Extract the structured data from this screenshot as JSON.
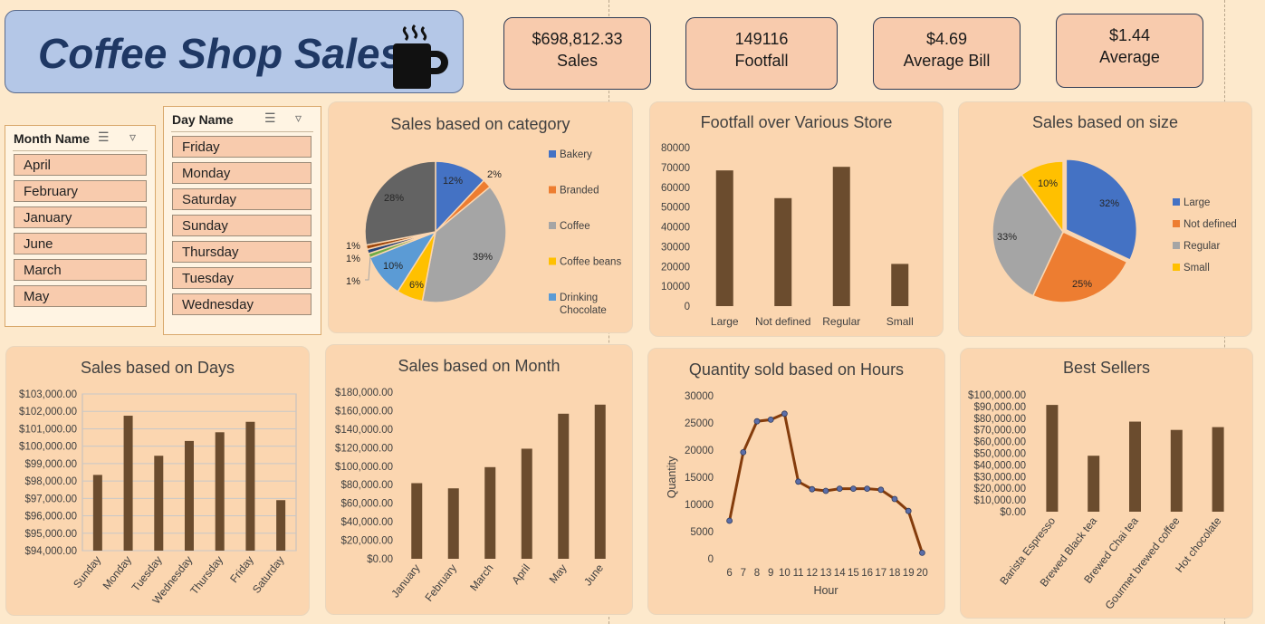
{
  "header": {
    "title": "Coffee Shop Sales",
    "icon": "coffee-mug-icon"
  },
  "kpis": [
    {
      "value": "$698,812.33",
      "label": "Sales"
    },
    {
      "value": "149116",
      "label": "Footfall"
    },
    {
      "value": "$4.69",
      "label": "Average Bill"
    },
    {
      "value": "$1.44",
      "label": "Average"
    }
  ],
  "slicers": {
    "month": {
      "title": "Month Name",
      "items": [
        "April",
        "February",
        "January",
        "June",
        "March",
        "May"
      ]
    },
    "day": {
      "title": "Day Name",
      "items": [
        "Friday",
        "Monday",
        "Saturday",
        "Sunday",
        "Thursday",
        "Tuesday",
        "Wednesday"
      ]
    }
  },
  "colors": {
    "bar": "#6b4c2e",
    "line": "#843c0c",
    "marker": "#5b6ea8",
    "blue": "#4472c4",
    "orange": "#ed7d31",
    "gray": "#a5a5a5",
    "gold": "#ffc000",
    "lightblue": "#5b9bd5",
    "green": "#70ad47",
    "navy": "#264478",
    "darkgray": "#636363"
  },
  "chart_data": [
    {
      "id": "category",
      "type": "pie",
      "title": "Sales based on category",
      "legend_position": "right",
      "legend": [
        "Bakery",
        "Branded",
        "Coffee",
        "Coffee beans",
        "Drinking Chocolate"
      ],
      "slices": [
        {
          "name": "Bakery",
          "value": 12,
          "label": "12%",
          "color": "#4472c4"
        },
        {
          "name": "Branded",
          "value": 2,
          "label": "2%",
          "color": "#ed7d31"
        },
        {
          "name": "Coffee",
          "value": 39,
          "label": "39%",
          "color": "#a5a5a5"
        },
        {
          "name": "Coffee beans",
          "value": 6,
          "label": "6%",
          "color": "#ffc000"
        },
        {
          "name": "Drinking Chocolate",
          "value": 10,
          "label": "10%",
          "color": "#5b9bd5"
        },
        {
          "name": "",
          "value": 1,
          "label": "1%",
          "color": "#70ad47"
        },
        {
          "name": "",
          "value": 1,
          "label": "1%",
          "color": "#264478"
        },
        {
          "name": "",
          "value": 1,
          "label": "1%",
          "color": "#9e480e"
        },
        {
          "name": "",
          "value": 28,
          "label": "28%",
          "color": "#636363"
        }
      ]
    },
    {
      "id": "footfall",
      "type": "bar",
      "title": "Footfall over Various Store",
      "categories": [
        "Large",
        "Not defined",
        "Regular",
        "Small"
      ],
      "values": [
        68500,
        54500,
        70300,
        21300
      ],
      "ylim": [
        0,
        80000
      ],
      "ticks": [
        0,
        10000,
        20000,
        30000,
        40000,
        50000,
        60000,
        70000,
        80000
      ],
      "tick_labels": [
        "0",
        "10000",
        "20000",
        "30000",
        "40000",
        "50000",
        "60000",
        "70000",
        "80000"
      ]
    },
    {
      "id": "size",
      "type": "pie",
      "title": "Sales based on size",
      "legend_position": "right",
      "legend": [
        "Large",
        "Not defined",
        "Regular",
        "Small"
      ],
      "slices": [
        {
          "name": "Large",
          "value": 32,
          "label": "32%",
          "color": "#4472c4"
        },
        {
          "name": "Not defined",
          "value": 25,
          "label": "25%",
          "color": "#ed7d31"
        },
        {
          "name": "Regular",
          "value": 33,
          "label": "33%",
          "color": "#a5a5a5"
        },
        {
          "name": "Small",
          "value": 10,
          "label": "10%",
          "color": "#ffc000"
        }
      ]
    },
    {
      "id": "days",
      "type": "bar",
      "title": "Sales based on Days",
      "categories": [
        "Sunday",
        "Monday",
        "Tuesday",
        "Wednesday",
        "Thursday",
        "Friday",
        "Saturday"
      ],
      "values": [
        98350,
        101750,
        99450,
        100300,
        100800,
        101400,
        96900
      ],
      "ylim": [
        94000,
        103000
      ],
      "grid": true,
      "ticks": [
        94000,
        95000,
        96000,
        97000,
        98000,
        99000,
        100000,
        101000,
        102000,
        103000
      ],
      "tick_labels": [
        "$94,000.00",
        "$95,000.00",
        "$96,000.00",
        "$97,000.00",
        "$98,000.00",
        "$99,000.00",
        "$100,000.00",
        "$101,000.00",
        "$102,000.00",
        "$103,000.00"
      ]
    },
    {
      "id": "month",
      "type": "bar",
      "title": "Sales based on Month",
      "categories": [
        "January",
        "February",
        "March",
        "April",
        "May",
        "June"
      ],
      "values": [
        81700,
        76100,
        99000,
        118900,
        156700,
        166500
      ],
      "ylim": [
        0,
        180000
      ],
      "ticks": [
        0,
        20000,
        40000,
        60000,
        80000,
        100000,
        120000,
        140000,
        160000,
        180000
      ],
      "tick_labels": [
        "$0.00",
        "$20,000.00",
        "$40,000.00",
        "$60,000.00",
        "$80,000.00",
        "$100,000.00",
        "$120,000.00",
        "$140,000.00",
        "$160,000.00",
        "$180,000.00"
      ]
    },
    {
      "id": "hours",
      "type": "line",
      "title": "Quantity sold based on Hours",
      "xlabel": "Hour",
      "ylabel": "Quantity",
      "x": [
        6,
        7,
        8,
        9,
        10,
        11,
        12,
        13,
        14,
        15,
        16,
        17,
        18,
        19,
        20
      ],
      "values": [
        7000,
        19600,
        25300,
        25600,
        26700,
        14200,
        12800,
        12500,
        12900,
        12900,
        12900,
        12700,
        11000,
        8800,
        1100
      ],
      "ylim": [
        0,
        30000
      ],
      "ticks": [
        0,
        5000,
        10000,
        15000,
        20000,
        25000,
        30000
      ],
      "tick_labels": [
        "0",
        "5000",
        "10000",
        "15000",
        "20000",
        "25000",
        "30000"
      ]
    },
    {
      "id": "bestsellers",
      "type": "bar",
      "title": "Best Sellers",
      "categories": [
        "Barista Espresso",
        "Brewed Black tea",
        "Brewed Chai tea",
        "Gourmet brewed coffee",
        "Hot chocolate"
      ],
      "values": [
        91400,
        47900,
        77100,
        70000,
        72400
      ],
      "ylim": [
        0,
        100000
      ],
      "ticks": [
        0,
        10000,
        20000,
        30000,
        40000,
        50000,
        60000,
        70000,
        80000,
        90000,
        100000
      ],
      "tick_labels": [
        "$0.00",
        "$10,000.00",
        "$20,000.00",
        "$30,000.00",
        "$40,000.00",
        "$50,000.00",
        "$60,000.00",
        "$70,000.00",
        "$80,000.00",
        "$90,000.00",
        "$100,000.00"
      ]
    }
  ]
}
